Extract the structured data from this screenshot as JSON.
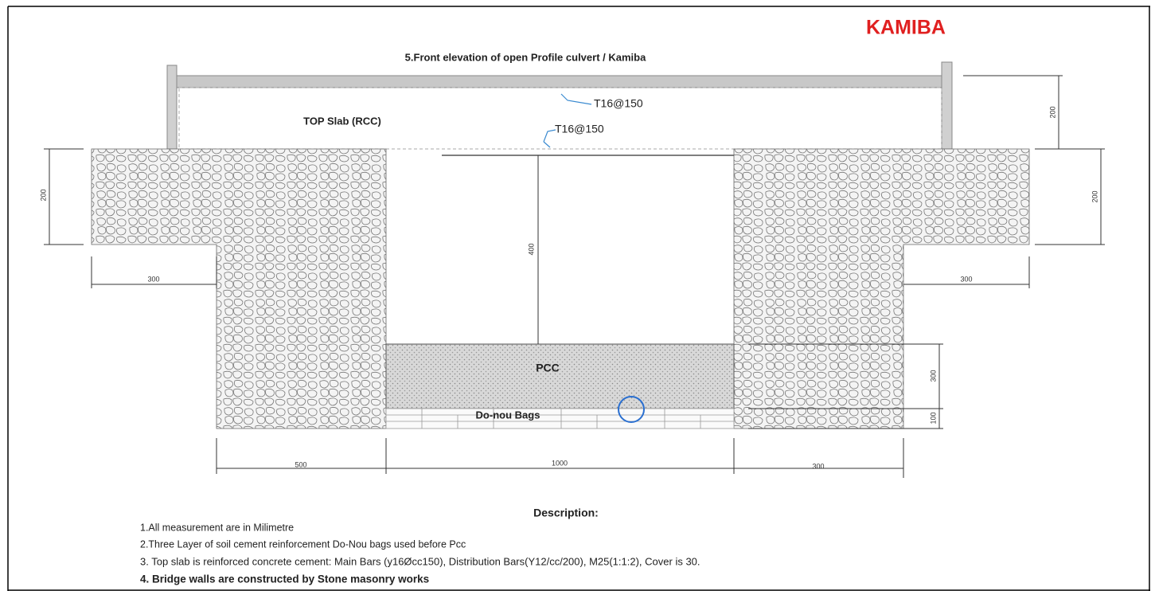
{
  "header": {
    "brand": "KAMIBA",
    "title": "5.Front elevation of open Profile culvert   / Kamiba"
  },
  "labels": {
    "top_slab": "TOP Slab (RCC)",
    "rebar_top": "T16@150",
    "rebar_bottom": "T16@150",
    "pcc": "PCC",
    "bags": "Do-nou Bags"
  },
  "dimensions": {
    "left_height": "200",
    "left_step": "300",
    "opening_height": "400",
    "slab_height": "200",
    "right_height": "200",
    "right_step": "300",
    "pcc_height": "300",
    "bags_height": "100",
    "left_wall": "500",
    "opening_width": "1000",
    "right_wall": "300"
  },
  "description": {
    "heading": "Description:",
    "notes": [
      "1.All measurement  are  in Milimetre",
      "2.Three Layer of soil cement reinforcement Do-Nou bags used before Pcc",
      "3. Top slab is reinforced concrete cement: Main Bars (y16Øcc150),  Distribution Bars(Y12/cc/200), M25(1:1:2), Cover is 30.",
      "4. Bridge walls are constructed by  Stone masonry works"
    ]
  }
}
